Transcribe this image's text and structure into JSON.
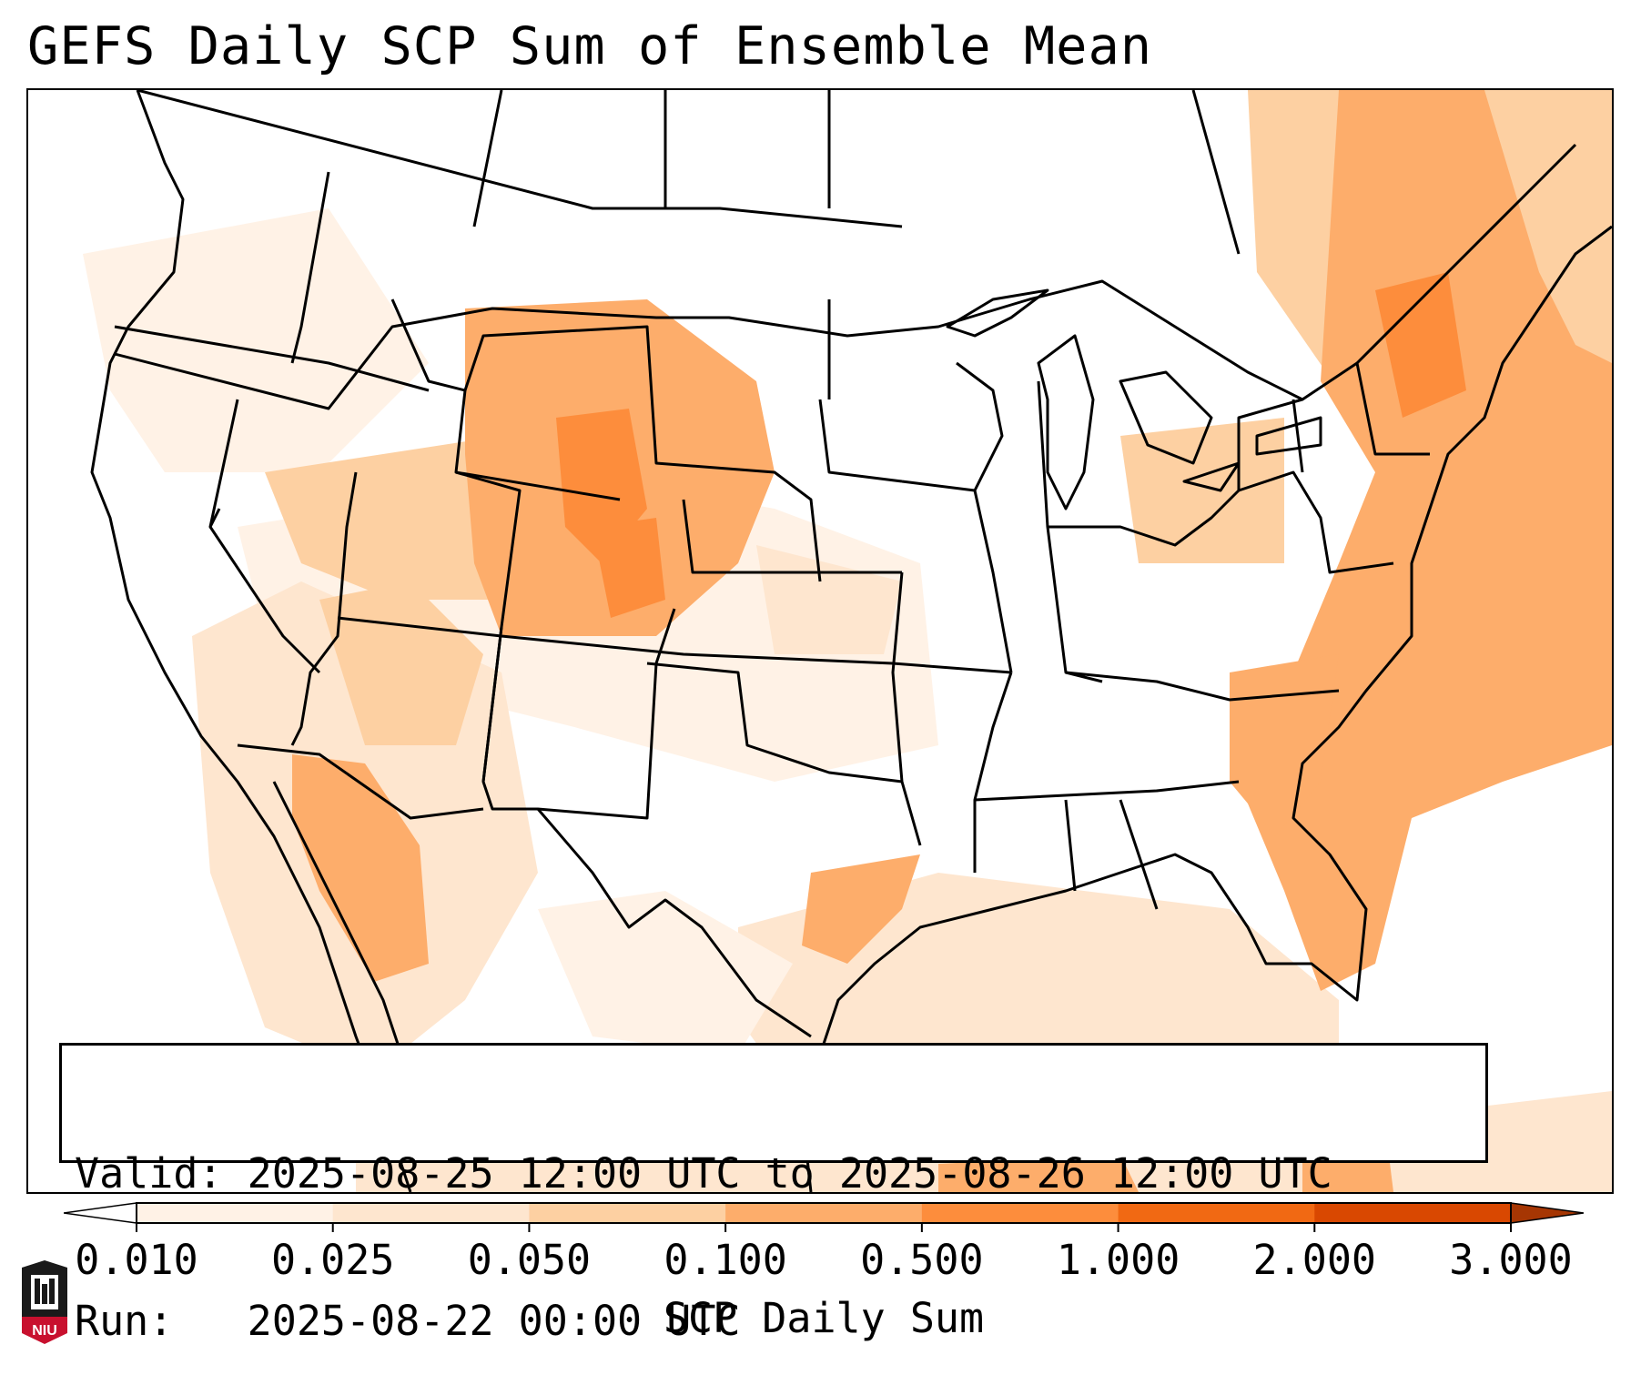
{
  "title": "GEFS Daily SCP Sum of Ensemble Mean",
  "info": {
    "valid_label": "Valid:",
    "valid_value": "2025-08-25 12:00 UTC to 2025-08-26 12:00 UTC",
    "run_label": "Run:",
    "run_value": "2025-08-22 00:00 UTC"
  },
  "colorbar": {
    "label": "SCP Daily Sum",
    "ticks": [
      "0.010",
      "0.025",
      "0.050",
      "0.100",
      "0.500",
      "1.000",
      "2.000",
      "3.000"
    ],
    "colors": [
      "#fff2e6",
      "#fee6cf",
      "#fdd0a2",
      "#fdad6b",
      "#fd8d3c",
      "#f16913",
      "#d94801",
      "#a63603"
    ],
    "extend": "both"
  },
  "logo": {
    "text": "NIU",
    "color": "#c8102e"
  },
  "map": {
    "projection": "Lambert conformal (CONUS)",
    "field": "SCP daily sum",
    "regions": [
      {
        "name": "Wyoming / Colorado",
        "level": "0.100-0.500"
      },
      {
        "name": "Utah / Nevada",
        "level": "0.050-0.100"
      },
      {
        "name": "Southwest Arizona / Sonora",
        "level": "0.100-0.500"
      },
      {
        "name": "Atlantic coast / Carolinas / Florida",
        "level": "0.100-0.500"
      },
      {
        "name": "Northeast / New England",
        "level": "0.100-0.500"
      },
      {
        "name": "Gulf of Mexico",
        "level": "0.025-0.100"
      },
      {
        "name": "Central Plains",
        "level": "0.025-0.050"
      }
    ]
  }
}
